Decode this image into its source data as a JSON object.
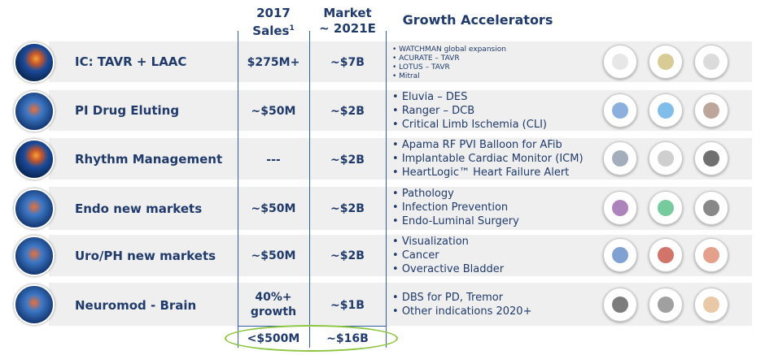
{
  "headers": {
    "sales_line1": "2017",
    "sales_line2": "Sales",
    "sales_sup": "1",
    "market_line1": "Market",
    "market_line2": "~ 2021E",
    "growth": "Growth Accelerators"
  },
  "rows": [
    {
      "label": "IC: TAVR + LAAC",
      "sales": "$275M+",
      "market": "~$7B",
      "bullets": [
        "WATCHMAN global expansion",
        "ACURATE – TAVR",
        "LOTUS – TAVR",
        "Mitral"
      ]
    },
    {
      "label": "PI Drug Eluting",
      "sales": "~$50M",
      "market": "~$2B",
      "bullets": [
        "Eluvia – DES",
        "Ranger – DCB",
        "Critical Limb Ischemia (CLI)"
      ]
    },
    {
      "label": "Rhythm Management",
      "sales": "---",
      "market": "~$2B",
      "bullets": [
        "Apama RF PVI Balloon for AFib",
        "Implantable Cardiac Monitor (ICM)",
        "HeartLogic™ Heart Failure Alert"
      ]
    },
    {
      "label": "Endo new markets",
      "sales": "~$50M",
      "market": "~$2B",
      "bullets": [
        "Pathology",
        "Infection Prevention",
        "Endo-Luminal Surgery"
      ]
    },
    {
      "label": "Uro/PH new markets",
      "sales": "~$50M",
      "market": "~$2B",
      "bullets": [
        "Visualization",
        "Cancer",
        "Overactive Bladder"
      ]
    },
    {
      "label": "Neuromod - Brain",
      "sales_line1": "40%+",
      "sales_line2": "growth",
      "market": "~$1B",
      "bullets": [
        "DBS for PD, Tremor",
        "Other indications 2020+"
      ]
    }
  ],
  "totals": {
    "sales": "<$500M",
    "market": "~$16B"
  },
  "colors": {
    "text": "#1f3a6b",
    "row_bg": "#efefef",
    "divider": "#2e5ea8",
    "highlight": "#8cc63f"
  }
}
